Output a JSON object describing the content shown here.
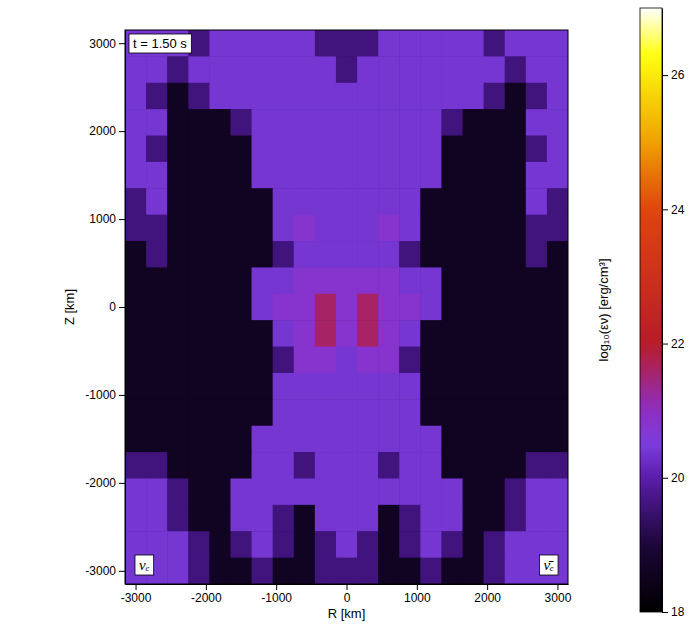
{
  "chart_data": {
    "type": "heatmap",
    "xlabel": "R [km]",
    "ylabel": "Z [km]",
    "annotations": [
      "t = 1.50 s",
      "νₑ",
      "ν̄ₑ"
    ],
    "xlim": [
      -3150,
      3150
    ],
    "ylim": [
      -3150,
      3150
    ],
    "xticks": [
      -3000,
      -2000,
      -1000,
      0,
      1000,
      2000,
      3000
    ],
    "yticks": [
      -3000,
      -2000,
      -1000,
      0,
      1000,
      2000,
      3000
    ],
    "x": [
      -3000,
      -2700,
      -2400,
      -2100,
      -1800,
      -1500,
      -1200,
      -900,
      -600,
      -300,
      0,
      300,
      600,
      900,
      1200,
      1500,
      1800,
      2100,
      2400,
      2700,
      3000
    ],
    "y": [
      3000,
      2700,
      2400,
      2100,
      1800,
      1500,
      1200,
      900,
      600,
      300,
      0,
      -300,
      -600,
      -900,
      -1200,
      -1500,
      -1800,
      -2100,
      -2400,
      -2700,
      -3000
    ],
    "z": [
      [
        20.4,
        20.4,
        20.4,
        19.6,
        20.4,
        20.4,
        20.4,
        20.4,
        20.4,
        19.6,
        19.6,
        19.6,
        20.4,
        20.4,
        20.4,
        20.4,
        20.4,
        19.6,
        20.4,
        20.4,
        20.4
      ],
      [
        20.4,
        20.4,
        19.6,
        20.4,
        20.4,
        20.4,
        20.4,
        20.4,
        20.4,
        20.4,
        19.6,
        20.4,
        20.4,
        20.4,
        20.4,
        20.4,
        20.4,
        20.4,
        19.6,
        20.4,
        20.4
      ],
      [
        20.4,
        19.6,
        18.6,
        19.6,
        20.4,
        20.4,
        20.4,
        20.4,
        20.4,
        20.4,
        20.4,
        20.4,
        20.4,
        20.4,
        20.4,
        20.4,
        20.4,
        19.6,
        18.6,
        19.6,
        20.4
      ],
      [
        20.4,
        20.4,
        18.6,
        18.6,
        18.6,
        19.6,
        20.4,
        20.4,
        20.4,
        20.4,
        20.4,
        20.4,
        20.4,
        20.4,
        20.4,
        19.6,
        18.6,
        18.6,
        18.6,
        20.4,
        20.4
      ],
      [
        20.4,
        19.6,
        18.6,
        18.6,
        18.6,
        18.6,
        20.4,
        20.4,
        20.4,
        20.4,
        20.4,
        20.4,
        20.4,
        20.4,
        20.4,
        18.6,
        18.6,
        18.6,
        18.6,
        19.6,
        20.4
      ],
      [
        20.4,
        20.4,
        18.6,
        18.6,
        18.6,
        18.6,
        20.4,
        20.4,
        20.4,
        20.4,
        20.4,
        20.4,
        20.4,
        20.4,
        20.4,
        18.6,
        18.6,
        18.6,
        18.6,
        20.4,
        20.4
      ],
      [
        19.6,
        20.4,
        18.6,
        18.6,
        18.6,
        18.6,
        18.6,
        20.4,
        20.4,
        20.4,
        20.4,
        20.4,
        20.4,
        20.4,
        18.6,
        18.6,
        18.6,
        18.6,
        18.6,
        20.4,
        19.6
      ],
      [
        19.6,
        19.6,
        18.6,
        18.6,
        18.6,
        18.6,
        18.6,
        20.4,
        20.8,
        20.4,
        20.4,
        20.4,
        20.8,
        20.4,
        18.6,
        18.6,
        18.6,
        18.6,
        18.6,
        19.6,
        19.6
      ],
      [
        18.6,
        19.6,
        18.6,
        18.6,
        18.6,
        18.6,
        18.6,
        19.6,
        20.4,
        20.4,
        20.4,
        20.4,
        20.4,
        19.6,
        18.6,
        18.6,
        18.6,
        18.6,
        18.6,
        19.6,
        18.6
      ],
      [
        18.6,
        18.6,
        18.6,
        18.6,
        18.6,
        18.6,
        20.4,
        20.4,
        20.8,
        20.8,
        20.8,
        20.8,
        20.8,
        20.4,
        20.4,
        18.6,
        18.6,
        18.6,
        18.6,
        18.6,
        18.6
      ],
      [
        18.6,
        18.6,
        18.6,
        18.6,
        18.6,
        18.6,
        20.4,
        20.8,
        20.8,
        21.6,
        20.8,
        21.6,
        20.8,
        20.8,
        20.4,
        18.6,
        18.6,
        18.6,
        18.6,
        18.6,
        18.6
      ],
      [
        18.6,
        18.6,
        18.6,
        18.6,
        18.6,
        18.6,
        18.6,
        20.4,
        20.8,
        21.6,
        20.8,
        21.6,
        20.8,
        20.4,
        18.6,
        18.6,
        18.6,
        18.6,
        18.6,
        18.6,
        18.6
      ],
      [
        18.6,
        18.6,
        18.6,
        18.6,
        18.6,
        18.6,
        18.6,
        19.6,
        20.8,
        20.8,
        20.4,
        20.8,
        20.8,
        19.6,
        18.6,
        18.6,
        18.6,
        18.6,
        18.6,
        18.6,
        18.6
      ],
      [
        18.6,
        18.6,
        18.6,
        18.6,
        18.6,
        18.6,
        18.6,
        20.4,
        20.4,
        20.4,
        20.4,
        20.4,
        20.4,
        20.4,
        18.6,
        18.6,
        18.6,
        18.6,
        18.6,
        18.6,
        18.6
      ],
      [
        18.6,
        18.6,
        18.6,
        18.6,
        18.6,
        18.6,
        18.6,
        20.4,
        20.4,
        20.4,
        20.4,
        20.4,
        20.4,
        20.4,
        18.6,
        18.6,
        18.6,
        18.6,
        18.6,
        18.6,
        18.6
      ],
      [
        18.6,
        18.6,
        18.6,
        18.6,
        18.6,
        18.6,
        20.4,
        20.4,
        20.4,
        20.4,
        20.4,
        20.4,
        20.4,
        20.4,
        20.4,
        18.6,
        18.6,
        18.6,
        18.6,
        18.6,
        18.6
      ],
      [
        19.6,
        19.6,
        18.6,
        18.6,
        18.6,
        18.6,
        20.4,
        20.4,
        19.6,
        20.4,
        20.4,
        20.4,
        19.6,
        20.4,
        20.4,
        18.6,
        18.6,
        18.6,
        18.6,
        19.6,
        19.6
      ],
      [
        20.4,
        20.4,
        19.6,
        18.6,
        18.6,
        20.4,
        20.4,
        20.4,
        20.4,
        20.4,
        20.4,
        20.4,
        20.4,
        20.4,
        20.4,
        20.4,
        18.6,
        18.6,
        19.6,
        20.4,
        20.4
      ],
      [
        20.4,
        20.4,
        19.6,
        18.6,
        18.6,
        20.4,
        20.4,
        19.6,
        18.6,
        20.4,
        20.4,
        20.4,
        18.6,
        19.6,
        20.4,
        20.4,
        18.6,
        18.6,
        19.6,
        20.4,
        20.4
      ],
      [
        20.4,
        20.4,
        20.4,
        19.6,
        18.6,
        19.6,
        20.4,
        19.6,
        18.6,
        19.6,
        20.4,
        19.6,
        18.6,
        19.6,
        20.4,
        19.6,
        18.6,
        19.6,
        20.4,
        20.4,
        20.4
      ],
      [
        20.4,
        20.4,
        20.4,
        19.6,
        18.6,
        18.6,
        19.6,
        18.6,
        18.6,
        19.6,
        19.6,
        19.6,
        18.6,
        18.6,
        19.6,
        18.6,
        18.6,
        19.6,
        20.4,
        20.4,
        20.4
      ]
    ],
    "colorbar": {
      "label": "log₁₀(εν) [erg/cm³]",
      "range": [
        18,
        27
      ],
      "ticks": [
        18,
        20,
        22,
        24,
        26
      ]
    }
  }
}
